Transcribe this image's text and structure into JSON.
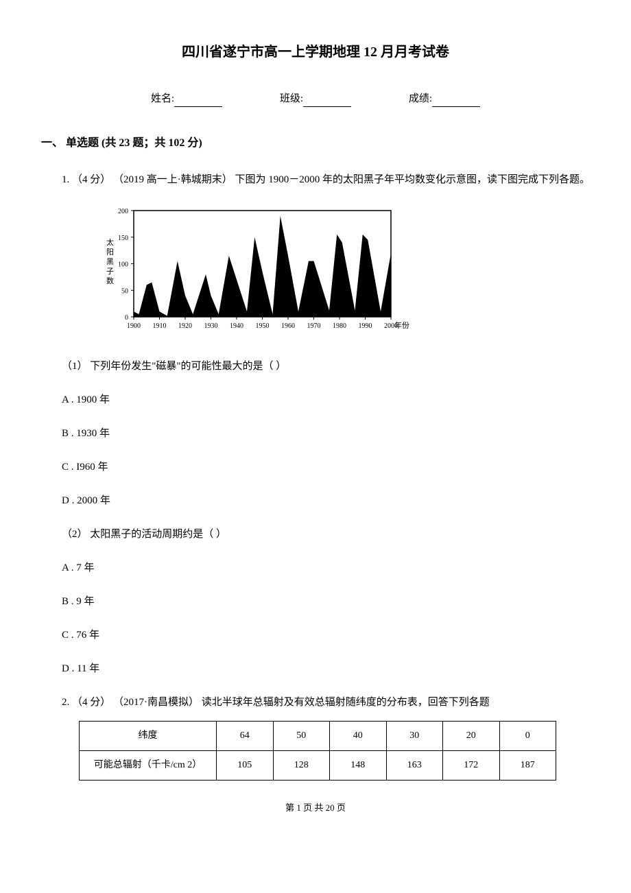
{
  "title": "四川省遂宁市高一上学期地理 12 月月考试卷",
  "info": {
    "name_label": "姓名:",
    "class_label": "班级:",
    "score_label": "成绩:"
  },
  "section": {
    "heading": "一、 单选题 (共 23 题；共 102 分)"
  },
  "q1": {
    "intro": "1. （4 分） （2019 高一上·韩城期末） 下图为 1900－2000 年的太阳黑子年平均数变化示意图，读下图完成下列各题。",
    "chart": {
      "type": "area",
      "ylabel": "太阳黑子数",
      "xlabel": "年份",
      "ylim": [
        0,
        200
      ],
      "yticks": [
        0,
        50,
        100,
        150,
        200
      ],
      "xticks": [
        1900,
        1910,
        1920,
        1930,
        1940,
        1950,
        1960,
        1970,
        1980,
        1990,
        2000
      ],
      "background_color": "#ffffff",
      "fill_color": "#000000",
      "axis_color": "#000000",
      "tick_fontsize": 10,
      "label_fontsize": 11,
      "data_points": [
        {
          "x": 1900,
          "y": 10
        },
        {
          "x": 1902,
          "y": 5
        },
        {
          "x": 1905,
          "y": 60
        },
        {
          "x": 1907,
          "y": 65
        },
        {
          "x": 1910,
          "y": 10
        },
        {
          "x": 1913,
          "y": 2
        },
        {
          "x": 1917,
          "y": 105
        },
        {
          "x": 1920,
          "y": 40
        },
        {
          "x": 1923,
          "y": 5
        },
        {
          "x": 1928,
          "y": 80
        },
        {
          "x": 1930,
          "y": 40
        },
        {
          "x": 1933,
          "y": 5
        },
        {
          "x": 1937,
          "y": 115
        },
        {
          "x": 1940,
          "y": 70
        },
        {
          "x": 1944,
          "y": 10
        },
        {
          "x": 1947,
          "y": 150
        },
        {
          "x": 1950,
          "y": 85
        },
        {
          "x": 1954,
          "y": 5
        },
        {
          "x": 1957,
          "y": 190
        },
        {
          "x": 1960,
          "y": 115
        },
        {
          "x": 1964,
          "y": 10
        },
        {
          "x": 1968,
          "y": 105
        },
        {
          "x": 1970,
          "y": 105
        },
        {
          "x": 1976,
          "y": 12
        },
        {
          "x": 1979,
          "y": 155
        },
        {
          "x": 1981,
          "y": 140
        },
        {
          "x": 1986,
          "y": 12
        },
        {
          "x": 1989,
          "y": 155
        },
        {
          "x": 1991,
          "y": 145
        },
        {
          "x": 1996,
          "y": 10
        },
        {
          "x": 2000,
          "y": 120
        }
      ]
    },
    "sub1": {
      "text": "（1） 下列年份发生\"磁暴\"的可能性最大的是（    ）",
      "options": {
        "a": "A . 1900 年",
        "b": "B . 1930 年",
        "c": "C . I960 年",
        "d": "D . 2000 年"
      }
    },
    "sub2": {
      "text": "（2） 太阳黑子的活动周期约是（    ）",
      "options": {
        "a": "A . 7 年",
        "b": "B . 9 年",
        "c": "C . 76 年",
        "d": "D . 11 年"
      }
    }
  },
  "q2": {
    "intro": "2. （4 分） （2017·南昌模拟） 读北半球年总辐射及有效总辐射随纬度的分布表，回答下列各题",
    "table": {
      "columns": [
        "纬度",
        "64",
        "50",
        "40",
        "30",
        "20",
        "0"
      ],
      "rows": [
        [
          "可能总辐射（千卡/cm 2）",
          "105",
          "128",
          "148",
          "163",
          "172",
          "187"
        ]
      ],
      "border_color": "#000000",
      "cell_padding": 10
    }
  },
  "footer": "第 1 页 共 20 页"
}
